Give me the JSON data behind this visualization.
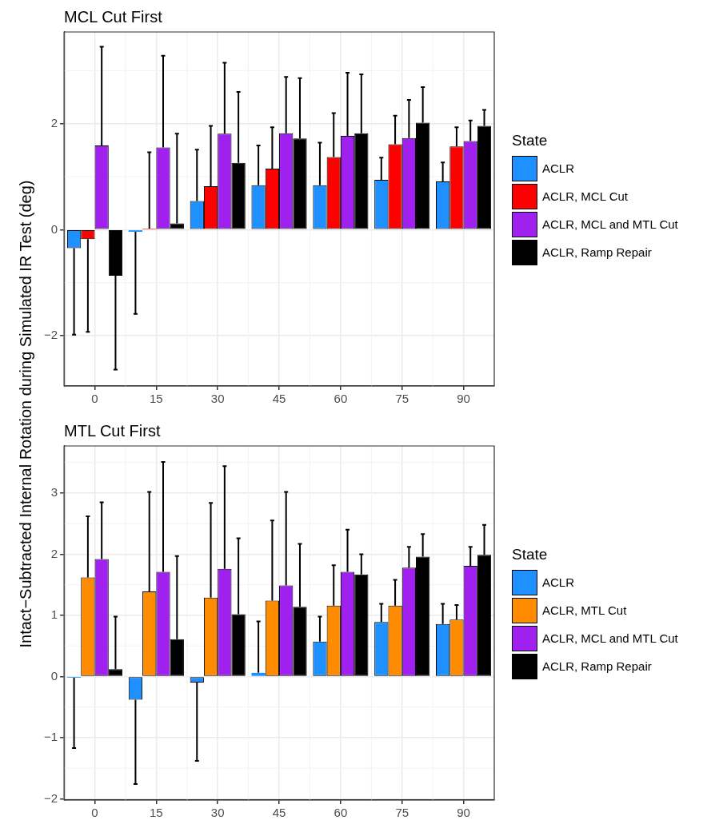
{
  "chart_data": [
    {
      "type": "bar",
      "title": "MCL Cut First",
      "ylabel": "Intact−Subtracted Internal Rotation during Simulated IR Test (deg)",
      "legend_title": "State",
      "legend": "right",
      "grid": true,
      "categories": [
        "0",
        "15",
        "30",
        "45",
        "60",
        "75",
        "90"
      ],
      "ylim": [
        -2.95,
        3.73
      ],
      "yticks": [
        -2,
        0,
        2
      ],
      "series": [
        {
          "name": "ACLR",
          "color": "#1e90ff",
          "values": [
            -0.35,
            -0.04,
            0.54,
            0.84,
            0.84,
            0.94,
            0.91
          ],
          "errors": [
            [
              -1.98,
              -0.35
            ],
            [
              -1.59,
              -0.04
            ],
            [
              0.54,
              1.51
            ],
            [
              0.84,
              1.59
            ],
            [
              0.84,
              1.64
            ],
            [
              0.94,
              1.36
            ],
            [
              0.91,
              1.27
            ]
          ]
        },
        {
          "name": "ACLR, MCL Cut",
          "color": "#ff0000",
          "values": [
            -0.18,
            0.02,
            0.82,
            1.15,
            1.37,
            1.61,
            1.57
          ],
          "errors": [
            [
              -1.93,
              -0.18
            ],
            [
              0.02,
              1.46
            ],
            [
              0.82,
              1.96
            ],
            [
              1.15,
              1.93
            ],
            [
              1.37,
              2.2
            ],
            [
              1.61,
              2.15
            ],
            [
              1.57,
              1.93
            ]
          ]
        },
        {
          "name": "ACLR, MCL and MTL Cut",
          "color": "#a020f0",
          "values": [
            1.59,
            1.55,
            1.81,
            1.82,
            1.77,
            1.73,
            1.67
          ],
          "errors": [
            [
              1.59,
              3.45
            ],
            [
              1.55,
              3.28
            ],
            [
              1.81,
              3.15
            ],
            [
              1.82,
              2.88
            ],
            [
              1.77,
              2.96
            ],
            [
              1.73,
              2.45
            ],
            [
              1.67,
              2.06
            ]
          ]
        },
        {
          "name": "ACLR, Ramp Repair",
          "color": "#000000",
          "values": [
            -0.87,
            0.12,
            1.26,
            1.72,
            1.82,
            2.02,
            1.96
          ],
          "errors": [
            [
              -2.64,
              -0.87
            ],
            [
              0.12,
              1.81
            ],
            [
              1.26,
              2.6
            ],
            [
              1.72,
              2.86
            ],
            [
              1.82,
              2.93
            ],
            [
              2.02,
              2.69
            ],
            [
              1.96,
              2.26
            ]
          ]
        }
      ]
    },
    {
      "type": "bar",
      "title": "MTL Cut First",
      "legend_title": "State",
      "legend": "right",
      "grid": true,
      "categories": [
        "0",
        "15",
        "30",
        "45",
        "60",
        "75",
        "90"
      ],
      "ylim": [
        -2.02,
        3.77
      ],
      "yticks": [
        -2,
        -1,
        0,
        1,
        2,
        3
      ],
      "series": [
        {
          "name": "ACLR",
          "color": "#1e90ff",
          "values": [
            -0.02,
            -0.38,
            -0.1,
            0.06,
            0.57,
            0.89,
            0.86
          ],
          "errors": [
            [
              -1.17,
              -0.02
            ],
            [
              -1.76,
              -0.38
            ],
            [
              -1.38,
              -0.1
            ],
            [
              0.06,
              0.9
            ],
            [
              0.57,
              0.98
            ],
            [
              0.89,
              1.19
            ],
            [
              0.86,
              1.19
            ]
          ]
        },
        {
          "name": "ACLR, MTL Cut",
          "color": "#ff8c00",
          "values": [
            1.62,
            1.39,
            1.29,
            1.24,
            1.16,
            1.16,
            0.93
          ],
          "errors": [
            [
              1.62,
              2.62
            ],
            [
              1.39,
              3.02
            ],
            [
              1.29,
              2.84
            ],
            [
              1.24,
              2.55
            ],
            [
              1.16,
              1.82
            ],
            [
              1.16,
              1.58
            ],
            [
              0.93,
              1.17
            ]
          ]
        },
        {
          "name": "ACLR, MCL and MTL Cut",
          "color": "#a020f0",
          "values": [
            1.92,
            1.71,
            1.76,
            1.49,
            1.71,
            1.78,
            1.81
          ],
          "errors": [
            [
              1.92,
              2.85
            ],
            [
              1.71,
              3.51
            ],
            [
              1.76,
              3.44
            ],
            [
              1.49,
              3.02
            ],
            [
              1.71,
              2.4
            ],
            [
              1.78,
              2.12
            ],
            [
              1.81,
              2.12
            ]
          ]
        },
        {
          "name": "ACLR, Ramp Repair",
          "color": "#000000",
          "values": [
            0.12,
            0.61,
            1.02,
            1.14,
            1.67,
            1.96,
            1.99
          ],
          "errors": [
            [
              0.12,
              0.98
            ],
            [
              0.61,
              1.97
            ],
            [
              1.02,
              2.26
            ],
            [
              1.14,
              2.17
            ],
            [
              1.67,
              2.0
            ],
            [
              1.96,
              2.33
            ],
            [
              1.99,
              2.48
            ]
          ]
        }
      ]
    }
  ]
}
